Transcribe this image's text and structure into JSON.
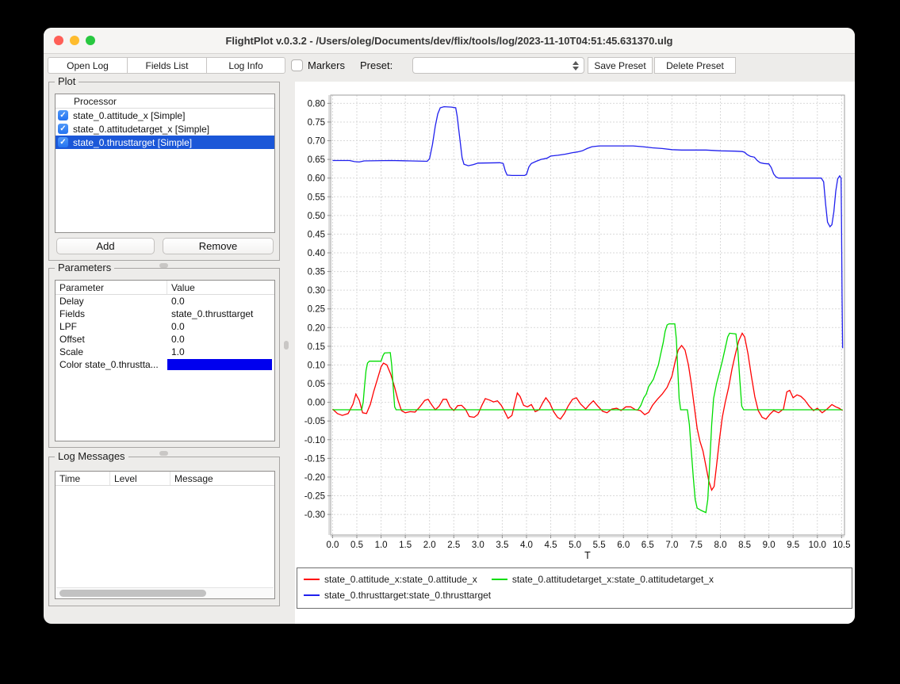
{
  "window": {
    "title": "FlightPlot v.0.3.2 - /Users/oleg/Documents/dev/flix/tools/log/2023-11-10T04:51:45.631370.ulg"
  },
  "traffic_lights": {
    "close": "#ff5f57",
    "minimize": "#febc2e",
    "zoom": "#28c840"
  },
  "toolbar": {
    "open_log": "Open Log",
    "fields_list": "Fields List",
    "log_info": "Log Info",
    "markers_label": "Markers",
    "markers_checked": false,
    "preset_label": "Preset:",
    "preset_value": "",
    "save_preset": "Save Preset",
    "delete_preset": "Delete Preset"
  },
  "plot_panel": {
    "title": "Plot",
    "column_header": "Processor",
    "processors": [
      {
        "label": "state_0.attitude_x [Simple]",
        "checked": true,
        "selected": false
      },
      {
        "label": "state_0.attitudetarget_x [Simple]",
        "checked": true,
        "selected": false
      },
      {
        "label": "state_0.thrusttarget [Simple]",
        "checked": true,
        "selected": true
      }
    ],
    "add_button": "Add",
    "remove_button": "Remove"
  },
  "parameters_panel": {
    "title": "Parameters",
    "columns": [
      "Parameter",
      "Value"
    ],
    "rows": [
      {
        "parameter": "Delay",
        "value": "0.0"
      },
      {
        "parameter": "Fields",
        "value": "state_0.thrusttarget"
      },
      {
        "parameter": "LPF",
        "value": "0.0"
      },
      {
        "parameter": "Offset",
        "value": "0.0"
      },
      {
        "parameter": "Scale",
        "value": "1.0"
      },
      {
        "parameter": "Color state_0.thrustta...",
        "value": "",
        "color_swatch": "#0000ee"
      }
    ]
  },
  "log_messages_panel": {
    "title": "Log Messages",
    "columns": [
      "Time",
      "Level",
      "Message"
    ],
    "rows": []
  },
  "selection_color": "#1b57d8",
  "chart_data": {
    "type": "line",
    "title": "",
    "xlabel": "T",
    "ylabel": "",
    "xlim": [
      -0.04,
      10.56
    ],
    "ylim": [
      -0.355,
      0.822
    ],
    "xticks": [
      0.0,
      0.5,
      1.0,
      1.5,
      2.0,
      2.5,
      3.0,
      3.5,
      4.0,
      4.5,
      5.0,
      5.5,
      6.0,
      6.5,
      7.0,
      7.5,
      8.0,
      8.5,
      9.0,
      9.5,
      10.0,
      10.5
    ],
    "yticks": [
      -0.3,
      -0.25,
      -0.2,
      -0.15,
      -0.1,
      -0.05,
      0.0,
      0.05,
      0.1,
      0.15,
      0.2,
      0.25,
      0.3,
      0.35,
      0.4,
      0.45,
      0.5,
      0.55,
      0.6,
      0.65,
      0.7,
      0.75,
      0.8
    ],
    "grid": true,
    "legend_position": "bottom",
    "series": [
      {
        "name": "state_0.attitude_x:state_0.attitude_x",
        "color": "#ff0000",
        "points": [
          [
            0,
            -0.018
          ],
          [
            0.1,
            -0.03
          ],
          [
            0.2,
            -0.035
          ],
          [
            0.32,
            -0.03
          ],
          [
            0.42,
            -0.005
          ],
          [
            0.48,
            0.022
          ],
          [
            0.55,
            0.005
          ],
          [
            0.62,
            -0.028
          ],
          [
            0.7,
            -0.03
          ],
          [
            0.78,
            -0.005
          ],
          [
            0.85,
            0.03
          ],
          [
            0.92,
            0.06
          ],
          [
            1.0,
            0.095
          ],
          [
            1.05,
            0.105
          ],
          [
            1.12,
            0.1
          ],
          [
            1.2,
            0.075
          ],
          [
            1.28,
            0.04
          ],
          [
            1.35,
            0.005
          ],
          [
            1.42,
            -0.022
          ],
          [
            1.5,
            -0.028
          ],
          [
            1.6,
            -0.025
          ],
          [
            1.7,
            -0.026
          ],
          [
            1.8,
            -0.012
          ],
          [
            1.9,
            0.005
          ],
          [
            1.97,
            0.008
          ],
          [
            2.05,
            -0.008
          ],
          [
            2.12,
            -0.02
          ],
          [
            2.2,
            -0.01
          ],
          [
            2.28,
            0.008
          ],
          [
            2.35,
            0.008
          ],
          [
            2.42,
            -0.012
          ],
          [
            2.5,
            -0.022
          ],
          [
            2.58,
            -0.009
          ],
          [
            2.66,
            -0.008
          ],
          [
            2.74,
            -0.018
          ],
          [
            2.82,
            -0.038
          ],
          [
            2.92,
            -0.04
          ],
          [
            3.0,
            -0.032
          ],
          [
            3.08,
            -0.008
          ],
          [
            3.15,
            0.01
          ],
          [
            3.24,
            0.006
          ],
          [
            3.32,
            0.001
          ],
          [
            3.4,
            0.004
          ],
          [
            3.48,
            -0.008
          ],
          [
            3.55,
            -0.025
          ],
          [
            3.62,
            -0.043
          ],
          [
            3.7,
            -0.035
          ],
          [
            3.76,
            -0.002
          ],
          [
            3.81,
            0.025
          ],
          [
            3.87,
            0.015
          ],
          [
            3.94,
            -0.008
          ],
          [
            4.02,
            -0.012
          ],
          [
            4.1,
            -0.006
          ],
          [
            4.18,
            -0.025
          ],
          [
            4.26,
            -0.02
          ],
          [
            4.34,
            0.0
          ],
          [
            4.4,
            0.012
          ],
          [
            4.48,
            -0.002
          ],
          [
            4.56,
            -0.025
          ],
          [
            4.64,
            -0.04
          ],
          [
            4.7,
            -0.045
          ],
          [
            4.78,
            -0.03
          ],
          [
            4.86,
            -0.01
          ],
          [
            4.95,
            0.008
          ],
          [
            5.03,
            0.012
          ],
          [
            5.12,
            -0.005
          ],
          [
            5.22,
            -0.018
          ],
          [
            5.3,
            -0.006
          ],
          [
            5.38,
            0.004
          ],
          [
            5.47,
            -0.01
          ],
          [
            5.57,
            -0.024
          ],
          [
            5.66,
            -0.028
          ],
          [
            5.76,
            -0.018
          ],
          [
            5.86,
            -0.016
          ],
          [
            5.95,
            -0.022
          ],
          [
            6.05,
            -0.012
          ],
          [
            6.15,
            -0.012
          ],
          [
            6.25,
            -0.02
          ],
          [
            6.35,
            -0.022
          ],
          [
            6.44,
            -0.033
          ],
          [
            6.52,
            -0.027
          ],
          [
            6.6,
            -0.008
          ],
          [
            6.7,
            0.008
          ],
          [
            6.8,
            0.022
          ],
          [
            6.9,
            0.04
          ],
          [
            7.0,
            0.07
          ],
          [
            7.07,
            0.11
          ],
          [
            7.13,
            0.14
          ],
          [
            7.2,
            0.152
          ],
          [
            7.27,
            0.14
          ],
          [
            7.34,
            0.1
          ],
          [
            7.4,
            0.05
          ],
          [
            7.46,
            -0.01
          ],
          [
            7.52,
            -0.07
          ],
          [
            7.58,
            -0.105
          ],
          [
            7.64,
            -0.13
          ],
          [
            7.7,
            -0.17
          ],
          [
            7.76,
            -0.21
          ],
          [
            7.82,
            -0.235
          ],
          [
            7.87,
            -0.225
          ],
          [
            7.92,
            -0.17
          ],
          [
            7.98,
            -0.1
          ],
          [
            8.04,
            -0.04
          ],
          [
            8.1,
            0.0
          ],
          [
            8.17,
            0.04
          ],
          [
            8.24,
            0.09
          ],
          [
            8.31,
            0.13
          ],
          [
            8.38,
            0.165
          ],
          [
            8.45,
            0.185
          ],
          [
            8.5,
            0.175
          ],
          [
            8.57,
            0.13
          ],
          [
            8.64,
            0.07
          ],
          [
            8.71,
            0.015
          ],
          [
            8.78,
            -0.022
          ],
          [
            8.86,
            -0.04
          ],
          [
            8.94,
            -0.045
          ],
          [
            9.02,
            -0.032
          ],
          [
            9.1,
            -0.022
          ],
          [
            9.2,
            -0.028
          ],
          [
            9.3,
            -0.018
          ],
          [
            9.37,
            0.028
          ],
          [
            9.43,
            0.032
          ],
          [
            9.5,
            0.012
          ],
          [
            9.58,
            0.02
          ],
          [
            9.66,
            0.016
          ],
          [
            9.74,
            0.006
          ],
          [
            9.83,
            -0.01
          ],
          [
            9.92,
            -0.022
          ],
          [
            10.0,
            -0.016
          ],
          [
            10.1,
            -0.028
          ],
          [
            10.2,
            -0.018
          ],
          [
            10.3,
            -0.006
          ],
          [
            10.38,
            -0.012
          ],
          [
            10.45,
            -0.016
          ],
          [
            10.52,
            -0.022
          ]
        ]
      },
      {
        "name": "state_0.attitudetarget_x:state_0.attitudetarget_x",
        "color": "#00dd00",
        "points": [
          [
            0,
            -0.02
          ],
          [
            0.6,
            -0.02
          ],
          [
            0.63,
            0.0
          ],
          [
            0.66,
            0.045
          ],
          [
            0.69,
            0.085
          ],
          [
            0.72,
            0.105
          ],
          [
            0.76,
            0.11
          ],
          [
            1.0,
            0.11
          ],
          [
            1.04,
            0.125
          ],
          [
            1.07,
            0.132
          ],
          [
            1.19,
            0.133
          ],
          [
            1.22,
            0.1
          ],
          [
            1.25,
            0.04
          ],
          [
            1.28,
            -0.012
          ],
          [
            1.31,
            -0.02
          ],
          [
            6.3,
            -0.02
          ],
          [
            6.36,
            -0.008
          ],
          [
            6.42,
            0.012
          ],
          [
            6.47,
            0.022
          ],
          [
            6.52,
            0.042
          ],
          [
            6.57,
            0.052
          ],
          [
            6.62,
            0.062
          ],
          [
            6.67,
            0.082
          ],
          [
            6.72,
            0.1
          ],
          [
            6.77,
            0.13
          ],
          [
            6.82,
            0.16
          ],
          [
            6.86,
            0.19
          ],
          [
            6.9,
            0.207
          ],
          [
            6.94,
            0.21
          ],
          [
            7.06,
            0.21
          ],
          [
            7.09,
            0.17
          ],
          [
            7.12,
            0.09
          ],
          [
            7.15,
            0.01
          ],
          [
            7.18,
            -0.02
          ],
          [
            7.32,
            -0.02
          ],
          [
            7.36,
            -0.06
          ],
          [
            7.4,
            -0.13
          ],
          [
            7.44,
            -0.2
          ],
          [
            7.48,
            -0.26
          ],
          [
            7.52,
            -0.283
          ],
          [
            7.6,
            -0.289
          ],
          [
            7.7,
            -0.295
          ],
          [
            7.74,
            -0.26
          ],
          [
            7.78,
            -0.16
          ],
          [
            7.82,
            -0.06
          ],
          [
            7.86,
            0.01
          ],
          [
            7.92,
            0.05
          ],
          [
            7.98,
            0.08
          ],
          [
            8.04,
            0.11
          ],
          [
            8.1,
            0.145
          ],
          [
            8.15,
            0.175
          ],
          [
            8.19,
            0.185
          ],
          [
            8.32,
            0.183
          ],
          [
            8.36,
            0.14
          ],
          [
            8.4,
            0.06
          ],
          [
            8.44,
            -0.01
          ],
          [
            8.48,
            -0.02
          ],
          [
            10.52,
            -0.02
          ]
        ]
      },
      {
        "name": "state_0.thrusttarget:state_0.thrusttarget",
        "color": "#2020ee",
        "points": [
          [
            0,
            0.647
          ],
          [
            0.35,
            0.647
          ],
          [
            0.45,
            0.644
          ],
          [
            0.55,
            0.643
          ],
          [
            0.65,
            0.646
          ],
          [
            1.2,
            0.647
          ],
          [
            1.6,
            0.646
          ],
          [
            1.95,
            0.645
          ],
          [
            2.0,
            0.652
          ],
          [
            2.06,
            0.69
          ],
          [
            2.12,
            0.74
          ],
          [
            2.17,
            0.772
          ],
          [
            2.22,
            0.788
          ],
          [
            2.3,
            0.791
          ],
          [
            2.45,
            0.79
          ],
          [
            2.54,
            0.788
          ],
          [
            2.57,
            0.765
          ],
          [
            2.6,
            0.732
          ],
          [
            2.63,
            0.7
          ],
          [
            2.67,
            0.655
          ],
          [
            2.71,
            0.637
          ],
          [
            2.8,
            0.633
          ],
          [
            2.9,
            0.636
          ],
          [
            3.0,
            0.64
          ],
          [
            3.45,
            0.641
          ],
          [
            3.52,
            0.639
          ],
          [
            3.56,
            0.62
          ],
          [
            3.6,
            0.608
          ],
          [
            3.7,
            0.607
          ],
          [
            3.96,
            0.607
          ],
          [
            4.0,
            0.61
          ],
          [
            4.05,
            0.63
          ],
          [
            4.1,
            0.639
          ],
          [
            4.2,
            0.645
          ],
          [
            4.3,
            0.65
          ],
          [
            4.42,
            0.653
          ],
          [
            4.5,
            0.659
          ],
          [
            4.65,
            0.661
          ],
          [
            4.8,
            0.664
          ],
          [
            4.95,
            0.668
          ],
          [
            5.05,
            0.67
          ],
          [
            5.15,
            0.673
          ],
          [
            5.25,
            0.679
          ],
          [
            5.35,
            0.684
          ],
          [
            5.5,
            0.686
          ],
          [
            6.2,
            0.686
          ],
          [
            6.4,
            0.684
          ],
          [
            6.6,
            0.681
          ],
          [
            6.8,
            0.679
          ],
          [
            7.0,
            0.676
          ],
          [
            7.2,
            0.675
          ],
          [
            7.7,
            0.675
          ],
          [
            8.0,
            0.673
          ],
          [
            8.3,
            0.672
          ],
          [
            8.45,
            0.671
          ],
          [
            8.5,
            0.669
          ],
          [
            8.55,
            0.663
          ],
          [
            8.62,
            0.658
          ],
          [
            8.7,
            0.656
          ],
          [
            8.76,
            0.647
          ],
          [
            8.82,
            0.641
          ],
          [
            8.9,
            0.639
          ],
          [
            9.0,
            0.638
          ],
          [
            9.05,
            0.628
          ],
          [
            9.1,
            0.611
          ],
          [
            9.15,
            0.603
          ],
          [
            9.2,
            0.6
          ],
          [
            10.08,
            0.6
          ],
          [
            10.13,
            0.59
          ],
          [
            10.17,
            0.53
          ],
          [
            10.21,
            0.482
          ],
          [
            10.26,
            0.47
          ],
          [
            10.3,
            0.475
          ],
          [
            10.34,
            0.51
          ],
          [
            10.38,
            0.565
          ],
          [
            10.42,
            0.598
          ],
          [
            10.46,
            0.606
          ],
          [
            10.49,
            0.6
          ],
          [
            10.5,
            0.47
          ],
          [
            10.51,
            0.29
          ],
          [
            10.52,
            0.145
          ]
        ]
      }
    ]
  }
}
